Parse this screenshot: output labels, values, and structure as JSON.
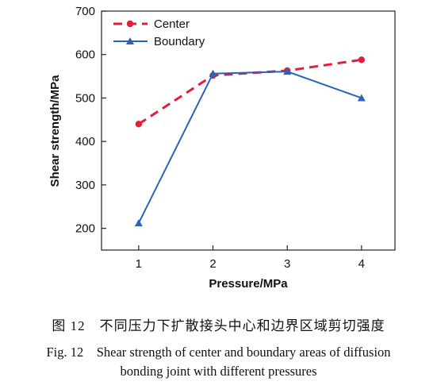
{
  "chart_data": {
    "type": "line",
    "x": [
      1,
      2,
      3,
      4
    ],
    "xticks": [
      "1",
      "2",
      "3",
      "4"
    ],
    "yticks": [
      "200",
      "300",
      "400",
      "500",
      "600",
      "700"
    ],
    "xlim": [
      0.5,
      4.45
    ],
    "ylim": [
      150,
      700
    ],
    "xlabel": "Pressure/MPa",
    "ylabel": "Shear strength/MPa",
    "grid": false,
    "legend_position": "top-left",
    "series": [
      {
        "name": "Center",
        "values": [
          440,
          552,
          563,
          588
        ],
        "color": "#e0203a",
        "line": "dashed",
        "marker": "circle"
      },
      {
        "name": "Boundary",
        "values": [
          212,
          556,
          561,
          500
        ],
        "color": "#2a63b8",
        "line": "solid",
        "marker": "triangle"
      }
    ]
  },
  "caption": {
    "zh": "图 12　不同压力下扩散接头中心和边界区域剪切强度",
    "en_line1": "Fig. 12　Shear strength of center and boundary areas of diffusion",
    "en_line2": "bonding joint with different pressures"
  }
}
